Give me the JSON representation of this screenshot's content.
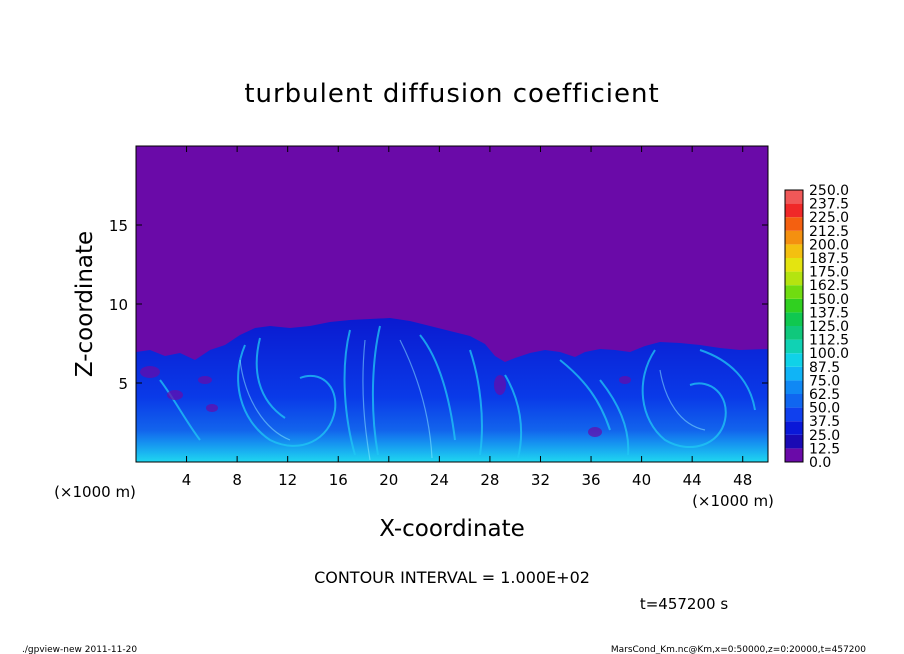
{
  "chart_data": {
    "type": "heatmap",
    "title": "turbulent diffusion coefficient",
    "xlabel": "X-coordinate",
    "ylabel": "Z-coordinate",
    "x_unit_left": "(×1000 m)",
    "x_unit_right": "(×1000 m)",
    "xlim": [
      0,
      50
    ],
    "ylim": [
      0,
      20
    ],
    "x_ticks": [
      "4",
      "8",
      "12",
      "16",
      "20",
      "24",
      "28",
      "32",
      "36",
      "40",
      "44",
      "48"
    ],
    "y_ticks": [
      "5",
      "10",
      "15"
    ],
    "colorbar": {
      "levels": [
        "0.0",
        "12.5",
        "25.0",
        "37.5",
        "50.0",
        "62.5",
        "75.0",
        "87.5",
        "100.0",
        "112.5",
        "125.0",
        "137.5",
        "150.0",
        "162.5",
        "175.0",
        "187.5",
        "200.0",
        "212.5",
        "225.0",
        "237.5",
        "250.0"
      ],
      "colors": [
        "#6a0aa8",
        "#1a0ab4",
        "#0a18d8",
        "#1040ee",
        "#1066f0",
        "#1088f4",
        "#10b4f6",
        "#10d2e8",
        "#10d2b4",
        "#10c87c",
        "#10c850",
        "#30d020",
        "#70dc10",
        "#b4e410",
        "#e4e410",
        "#f4c010",
        "#f49010",
        "#f46010",
        "#f02828",
        "#f05858",
        "#f48888"
      ]
    },
    "contour_interval": "CONTOUR INTERVAL = 1.000E+02",
    "time_label": "t=457200 s"
  },
  "footer": {
    "left": "./gpview-new  2011-11-20",
    "right": "MarsCond_Km.nc@Km,x=0:50000,z=0:20000,t=457200"
  }
}
